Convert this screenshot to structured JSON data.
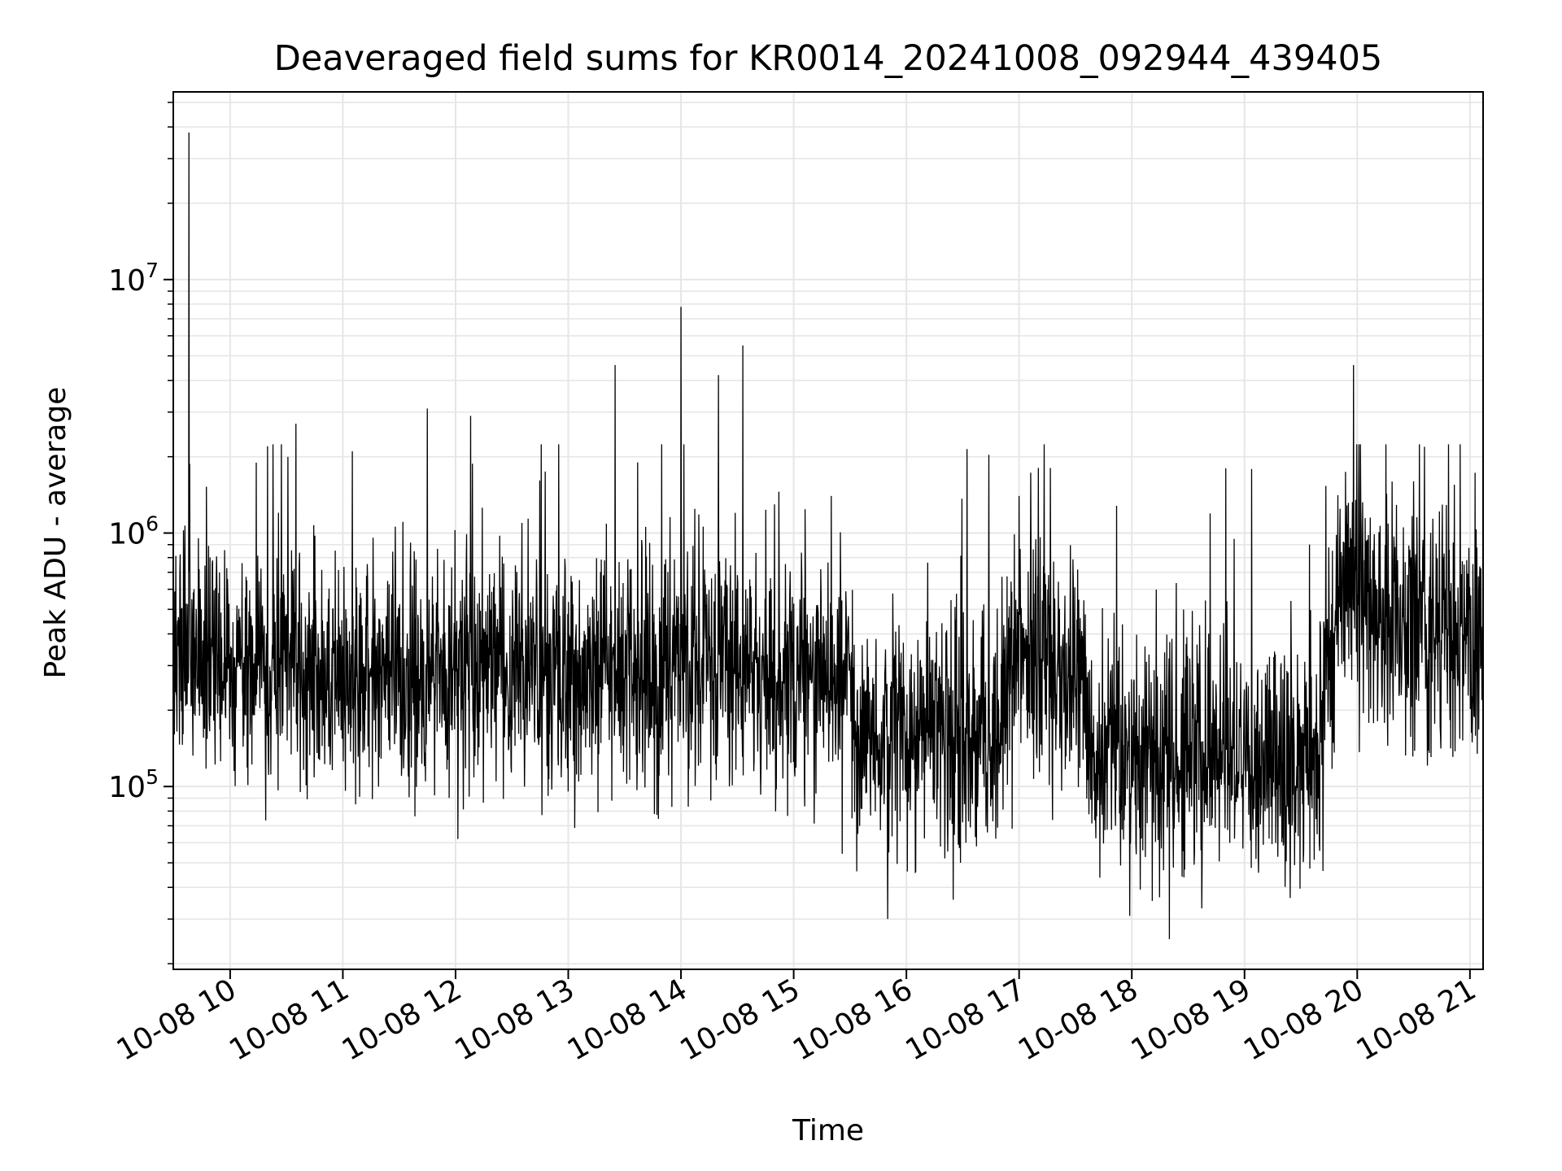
{
  "chart_data": {
    "type": "line",
    "title": "Deaveraged field sums for KR0014_20241008_092944_439405",
    "xlabel": "Time",
    "ylabel": "Peak ADU - average",
    "x_axis": {
      "kind": "time",
      "range": [
        "2024-10-08 09:29:44",
        "2024-10-08 21:07"
      ],
      "ticks": [
        "10-08 10",
        "10-08 11",
        "10-08 12",
        "10-08 13",
        "10-08 14",
        "10-08 15",
        "10-08 16",
        "10-08 17",
        "10-08 18",
        "10-08 19",
        "10-08 20",
        "10-08 21"
      ],
      "tick_rotation_deg": 30
    },
    "y_axis": {
      "scale": "log",
      "range": [
        19000,
        55000000
      ],
      "major_ticks": [
        {
          "value": 100000,
          "base": "10",
          "exp": "5"
        },
        {
          "value": 1000000,
          "base": "10",
          "exp": "6"
        },
        {
          "value": 10000000,
          "base": "10",
          "exp": "7"
        }
      ]
    },
    "grid": true,
    "line_color": "#000000",
    "grid_color": "#e6e6e6",
    "series": [
      {
        "name": "",
        "note_kind": "dense noisy time series, approx. 4000 samples",
        "x": [
          "2024-10-08 09:30",
          "2024-10-08 09:38",
          "2024-10-08 09:40",
          "2024-10-08 10:20",
          "2024-10-08 10:35",
          "2024-10-08 11:05",
          "2024-10-08 11:45",
          "2024-10-08 12:08",
          "2024-10-08 13:25",
          "2024-10-08 13:37",
          "2024-10-08 14:00",
          "2024-10-08 14:20",
          "2024-10-08 14:33",
          "2024-10-08 15:20",
          "2024-10-08 15:50",
          "2024-10-08 17:00",
          "2024-10-08 17:15",
          "2024-10-08 18:20",
          "2024-10-08 18:50",
          "2024-10-08 19:35",
          "2024-10-08 19:58",
          "2024-10-08 20:30",
          "2024-10-08 21:05"
        ],
        "y": [
          300000,
          38000000,
          200000,
          2200000,
          2700000,
          2100000,
          3100000,
          2900000,
          4600000,
          1900000,
          7800000,
          4200000,
          5500000,
          1400000,
          30000,
          1400000,
          300000,
          25000,
          1800000,
          400000,
          4600000,
          1600000,
          600000
        ]
      }
    ]
  }
}
